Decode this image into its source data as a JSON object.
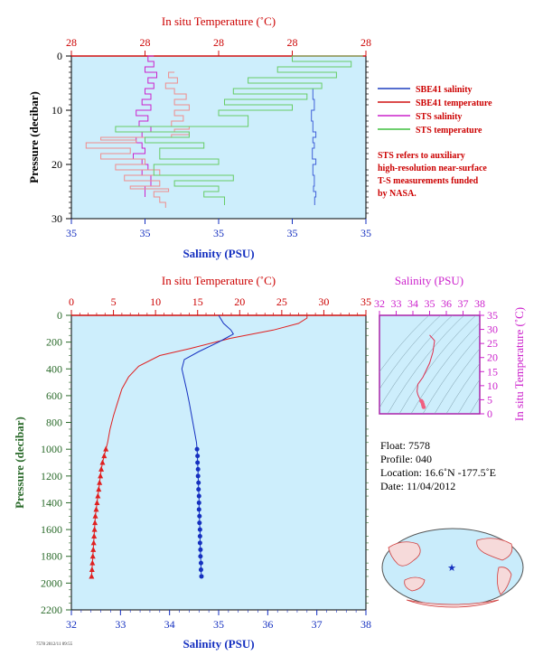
{
  "chart_data": [
    {
      "id": "surface",
      "type": "line",
      "top_axis_label": "In situ Temperature (˚C)",
      "top_ticks": [
        "28",
        "28",
        "28",
        "28",
        "28"
      ],
      "bottom_axis_label": "Salinity (PSU)",
      "bottom_ticks": [
        "35",
        "35",
        "35",
        "35",
        "35"
      ],
      "left_axis_label": "Pressure (decibar)",
      "y_ticks": [
        "0",
        "10",
        "20",
        "30"
      ],
      "ylim": [
        0,
        30
      ],
      "legend": [
        {
          "label": "SBE41 salinity",
          "color": "#1f3fbf"
        },
        {
          "label": "SBE41 temperature",
          "color": "#d01010"
        },
        {
          "label": "STS salinity",
          "color": "#cc22cc"
        },
        {
          "label": "STS temperature",
          "color": "#3fbf3f"
        }
      ],
      "note": [
        "STS refers to auxiliary",
        "high-resolution near-surface",
        "T-S measurements funded",
        "by NASA."
      ],
      "series": [
        {
          "name": "SBE41 salinity",
          "color": "#4060d8",
          "x": [
            0.82,
            0.82,
            0.825,
            0.815,
            0.82,
            0.83,
            0.82,
            0.825,
            0.818,
            0.83,
            0.82,
            0.825,
            0.822,
            0.83,
            0.826
          ],
          "y": [
            6,
            8,
            10,
            12,
            14,
            15,
            16,
            17,
            19,
            20,
            22,
            24,
            25,
            26,
            27.5
          ]
        },
        {
          "name": "STS salinity",
          "color": "#cc22cc",
          "x": [
            0.28,
            0.26,
            0.28,
            0.25,
            0.29,
            0.26,
            0.28,
            0.25,
            0.27,
            0.24,
            0.27,
            0.22,
            0.26,
            0.23,
            0.27,
            0.24,
            0.22,
            0.24,
            0.25,
            0.21,
            0.24,
            0.26,
            0.24,
            0.27,
            0.25
          ],
          "y": [
            0,
            1,
            2,
            3,
            4,
            5,
            6,
            7,
            8,
            9,
            10,
            11,
            12,
            13,
            14,
            15,
            16,
            17,
            18,
            19,
            20,
            21,
            22,
            24,
            26
          ]
        },
        {
          "name": "STS temperature (high-res 1)",
          "color": "#f08c8c",
          "x": [
            0.35,
            0.33,
            0.36,
            0.32,
            0.35,
            0.39,
            0.35,
            0.4,
            0.35,
            0.38,
            0.34,
            0.4,
            0.35,
            0.4,
            0.34,
            0.1,
            0.22,
            0.05,
            0.2,
            0.1,
            0.25,
            0.15,
            0.3,
            0.18,
            0.3,
            0.2,
            0.33,
            0.28,
            0.3,
            0.32
          ],
          "y": [
            3,
            4,
            5,
            6,
            7,
            8,
            9,
            10,
            11,
            12,
            13,
            13.5,
            14,
            14.5,
            15,
            15.5,
            16,
            17,
            18,
            19,
            20,
            21,
            22,
            23,
            24,
            24.5,
            25,
            26,
            27,
            28
          ]
        },
        {
          "name": "STS temperature",
          "color": "#66cc66",
          "x": [
            0.99,
            0.75,
            0.95,
            0.7,
            0.9,
            0.6,
            0.85,
            0.55,
            0.8,
            0.52,
            0.75,
            0.5,
            0.6,
            0.15,
            0.4,
            0.25,
            0.45,
            0.3,
            0.5,
            0.28,
            0.55,
            0.35,
            0.5,
            0.45,
            0.52
          ],
          "y": [
            0,
            1,
            2,
            3,
            4,
            5,
            6,
            7,
            8,
            9,
            10,
            11,
            13,
            14,
            15,
            16,
            17,
            19,
            20,
            22,
            23,
            24,
            25,
            26,
            27.5
          ]
        }
      ]
    },
    {
      "id": "profile",
      "type": "line",
      "top_axis_label": "In situ Temperature (˚C)",
      "top_ticks": [
        "0",
        "5",
        "10",
        "15",
        "20",
        "25",
        "30",
        "35"
      ],
      "xlim_temperature": [
        0,
        35
      ],
      "bottom_axis_label": "Salinity (PSU)",
      "bottom_ticks": [
        "32",
        "33",
        "34",
        "35",
        "36",
        "37",
        "38"
      ],
      "xlim_salinity": [
        32,
        38
      ],
      "left_axis_label": "Pressure (decibar)",
      "y_ticks": [
        "0",
        "200",
        "400",
        "600",
        "800",
        "1000",
        "1200",
        "1400",
        "1600",
        "1800",
        "2000",
        "2200"
      ],
      "ylim": [
        0,
        2200
      ],
      "series": [
        {
          "name": "Temperature",
          "color": "#e02020",
          "points": [
            [
              28.0,
              0
            ],
            [
              28.0,
              20
            ],
            [
              27.0,
              60
            ],
            [
              24.0,
              110
            ],
            [
              19.0,
              170
            ],
            [
              14.0,
              250
            ],
            [
              10.5,
              300
            ],
            [
              8.0,
              380
            ],
            [
              6.8,
              460
            ],
            [
              6.0,
              550
            ],
            [
              5.5,
              650
            ],
            [
              5.0,
              750
            ],
            [
              4.6,
              850
            ],
            [
              4.3,
              950
            ],
            [
              4.1,
              1000
            ]
          ],
          "marker_points": [
            [
              4.1,
              1000
            ],
            [
              3.9,
              1050
            ],
            [
              3.7,
              1100
            ],
            [
              3.55,
              1150
            ],
            [
              3.45,
              1200
            ],
            [
              3.35,
              1250
            ],
            [
              3.25,
              1300
            ],
            [
              3.15,
              1350
            ],
            [
              3.05,
              1400
            ],
            [
              2.95,
              1450
            ],
            [
              2.85,
              1500
            ],
            [
              2.8,
              1550
            ],
            [
              2.75,
              1600
            ],
            [
              2.7,
              1650
            ],
            [
              2.65,
              1700
            ],
            [
              2.6,
              1750
            ],
            [
              2.55,
              1800
            ],
            [
              2.5,
              1850
            ],
            [
              2.45,
              1900
            ],
            [
              2.4,
              1950
            ]
          ]
        },
        {
          "name": "Salinity",
          "color": "#1530c0",
          "points": [
            [
              35.0,
              0
            ],
            [
              35.1,
              60
            ],
            [
              35.25,
              110
            ],
            [
              35.3,
              140
            ],
            [
              35.0,
              200
            ],
            [
              34.6,
              270
            ],
            [
              34.3,
              330
            ],
            [
              34.25,
              400
            ],
            [
              34.3,
              480
            ],
            [
              34.35,
              560
            ],
            [
              34.4,
              650
            ],
            [
              34.45,
              750
            ],
            [
              34.5,
              850
            ],
            [
              34.55,
              950
            ],
            [
              34.56,
              1000
            ]
          ],
          "marker_points": [
            [
              34.56,
              1000
            ],
            [
              34.57,
              1050
            ],
            [
              34.57,
              1100
            ],
            [
              34.58,
              1150
            ],
            [
              34.58,
              1200
            ],
            [
              34.59,
              1250
            ],
            [
              34.59,
              1300
            ],
            [
              34.6,
              1350
            ],
            [
              34.6,
              1400
            ],
            [
              34.6,
              1450
            ],
            [
              34.61,
              1500
            ],
            [
              34.61,
              1550
            ],
            [
              34.62,
              1600
            ],
            [
              34.62,
              1650
            ],
            [
              34.62,
              1700
            ],
            [
              34.63,
              1750
            ],
            [
              34.63,
              1800
            ],
            [
              34.64,
              1850
            ],
            [
              34.64,
              1900
            ],
            [
              34.65,
              1950
            ]
          ]
        }
      ]
    },
    {
      "id": "ts-diagram",
      "type": "scatter",
      "top_axis_label": "Salinity (PSU)",
      "top_ticks": [
        "32",
        "33",
        "34",
        "35",
        "36",
        "37",
        "38"
      ],
      "xlim": [
        32,
        38
      ],
      "right_axis_label": "In situ Temperature (˚C)",
      "right_ticks": [
        "0",
        "5",
        "10",
        "15",
        "20",
        "25",
        "30",
        "35"
      ],
      "ylim": [
        0,
        35
      ],
      "series": [
        {
          "name": "T-S",
          "color": "#e03050",
          "points": [
            [
              35.0,
              28.0
            ],
            [
              35.3,
              26
            ],
            [
              35.2,
              22
            ],
            [
              35.0,
              18
            ],
            [
              34.6,
              13
            ],
            [
              34.3,
              10.5
            ],
            [
              34.25,
              8
            ],
            [
              34.3,
              6.8
            ],
            [
              34.4,
              5.5
            ],
            [
              34.5,
              4.6
            ],
            [
              34.56,
              4.1
            ],
            [
              34.6,
              3.3
            ],
            [
              34.63,
              2.6
            ],
            [
              34.65,
              2.4
            ]
          ]
        }
      ]
    }
  ],
  "float_info": {
    "float": "Float: 7578",
    "profile": "Profile: 040",
    "location": "Location: 16.6˚N -177.5˚E",
    "date": "Date: 11/04/2012"
  },
  "footer_text": "7578 2012/11 09:55"
}
